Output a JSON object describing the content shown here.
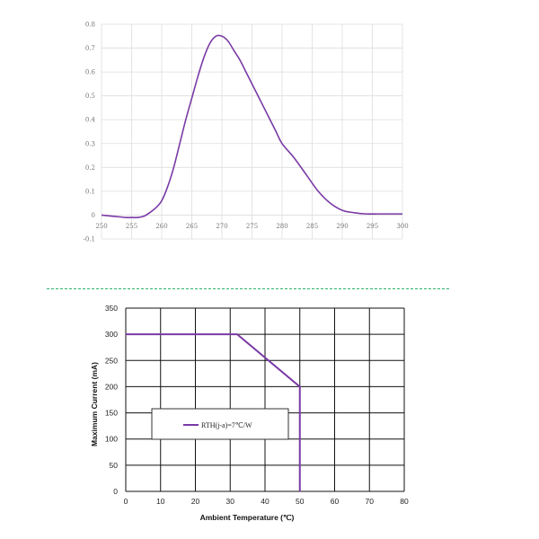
{
  "colors": {
    "curve": "#7a3aa6",
    "divider": "#2fb36a",
    "grid": "#dddddd"
  },
  "chart_data": [
    {
      "type": "line",
      "title": "",
      "xlabel": "",
      "ylabel": "",
      "xlim": [
        250,
        300
      ],
      "ylim": [
        -0.1,
        0.8
      ],
      "grid": true,
      "x_ticks": [
        "250",
        "255",
        "260",
        "265",
        "270",
        "275",
        "280",
        "285",
        "290",
        "295",
        "300"
      ],
      "y_ticks": [
        "0.8",
        "0.7",
        "0.6",
        "0.5",
        "0.4",
        "0.3",
        "0.2",
        "0.1",
        "0",
        "-0.1"
      ],
      "series": [
        {
          "x": [
            250,
            252,
            254,
            255,
            256,
            257,
            258,
            259,
            260,
            261,
            262,
            263,
            264,
            265,
            266,
            267,
            268,
            269,
            270,
            271,
            272,
            273,
            274,
            275,
            276,
            277,
            278,
            279,
            280,
            282,
            284,
            286,
            288,
            290,
            292,
            294,
            296,
            298,
            300
          ],
          "y": [
            0.0,
            -0.005,
            -0.01,
            -0.01,
            -0.01,
            -0.005,
            0.01,
            0.03,
            0.06,
            0.12,
            0.2,
            0.3,
            0.4,
            0.49,
            0.58,
            0.66,
            0.72,
            0.75,
            0.75,
            0.73,
            0.69,
            0.65,
            0.6,
            0.55,
            0.5,
            0.45,
            0.4,
            0.35,
            0.3,
            0.24,
            0.17,
            0.1,
            0.05,
            0.02,
            0.01,
            0.005,
            0.005,
            0.005,
            0.005
          ]
        }
      ]
    },
    {
      "type": "line",
      "title": "",
      "xlabel": "Ambient Temperature (℃)",
      "ylabel": "Maximum Current (mA)",
      "xlim": [
        0,
        80
      ],
      "ylim": [
        0,
        350
      ],
      "grid": true,
      "x_ticks": [
        "0",
        "10",
        "20",
        "30",
        "40",
        "50",
        "60",
        "70",
        "80"
      ],
      "y_ticks": [
        "350",
        "300",
        "250",
        "200",
        "150",
        "100",
        "50",
        "0"
      ],
      "legend": "center-left",
      "series": [
        {
          "name": "RTH(j-a)=7℃/W",
          "x": [
            0,
            32,
            50,
            50
          ],
          "y": [
            300,
            300,
            200,
            0
          ]
        }
      ]
    }
  ]
}
